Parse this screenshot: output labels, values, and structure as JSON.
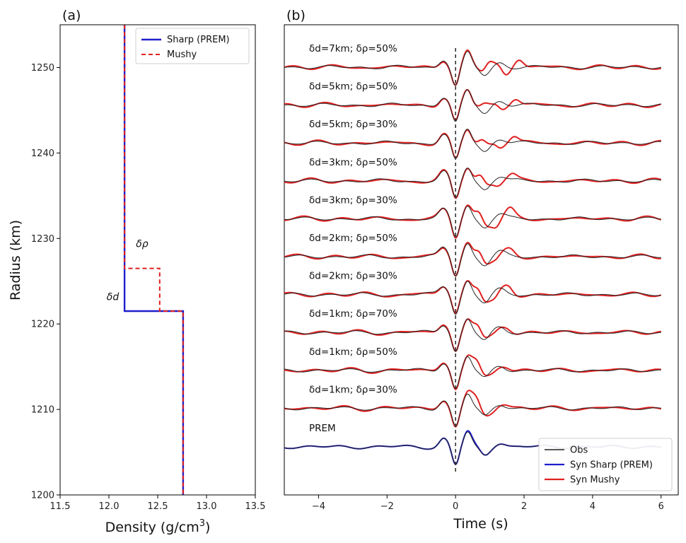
{
  "chart_data": [
    {
      "panel_label": "(a)",
      "type": "line",
      "xlabel": "Density (g/cm",
      "xlabel_sup": "3",
      "xlabel_tail": ")",
      "ylabel": "Radius (km)",
      "xlim": [
        11.5,
        13.5
      ],
      "ylim": [
        1200,
        1255
      ],
      "x_ticks": [
        11.5,
        12.0,
        12.5,
        13.0,
        13.5
      ],
      "x_tick_labels": [
        "11.5",
        "12.0",
        "12.5",
        "13.0",
        "13.5"
      ],
      "y_ticks": [
        1200,
        1210,
        1220,
        1230,
        1240,
        1250
      ],
      "y_tick_labels": [
        "1200",
        "1210",
        "1220",
        "1230",
        "1240",
        "1250"
      ],
      "series": [
        {
          "name": "Sharp (PREM)",
          "color": "#1f1fcc",
          "style": "solid",
          "x": [
            12.16,
            12.16,
            12.76,
            12.76
          ],
          "y": [
            1255,
            1221.5,
            1221.5,
            1200
          ]
        },
        {
          "name": "Mushy",
          "color": "#e02020",
          "style": "dashed",
          "x": [
            12.16,
            12.16,
            12.52,
            12.52,
            12.76,
            12.76
          ],
          "y": [
            1255,
            1226.5,
            1226.5,
            1221.5,
            1221.5,
            1200
          ]
        }
      ],
      "annotations": [
        {
          "text": "δρ",
          "x": 12.34,
          "y": 1229
        },
        {
          "text": "δd",
          "x": 12.04,
          "y": 1222.8
        }
      ],
      "legend_position": "top-right"
    },
    {
      "panel_label": "(b)",
      "type": "line",
      "xlabel": "Time (s)",
      "xlim": [
        -5,
        6.5
      ],
      "x_ticks": [
        -4,
        -2,
        0,
        2,
        4,
        6
      ],
      "x_tick_labels": [
        "−4",
        "−2",
        "0",
        "2",
        "4",
        "6"
      ],
      "y_ticks_shown": false,
      "reference_line": {
        "x": 0,
        "style": "dashed",
        "color": "#333333"
      },
      "traces": [
        {
          "label": "δd=7km; δρ=50%",
          "syn_shift": 0.4,
          "syn_amp": 1.12,
          "delay_wave": 0.55
        },
        {
          "label": "δd=5km; δρ=50%",
          "syn_shift": 0.3,
          "syn_amp": 1.1,
          "delay_wave": 0.45
        },
        {
          "label": "δd=5km; δρ=30%",
          "syn_shift": 0.25,
          "syn_amp": 1.05,
          "delay_wave": 0.45
        },
        {
          "label": "δd=3km; δρ=50%",
          "syn_shift": 0.2,
          "syn_amp": 1.05,
          "delay_wave": 0.4
        },
        {
          "label": "δd=3km; δρ=30%",
          "syn_shift": 0.15,
          "syn_amp": 1.02,
          "delay_wave": 0.55
        },
        {
          "label": "δd=2km; δρ=50%",
          "syn_shift": 0.15,
          "syn_amp": 1.02,
          "delay_wave": 0.35
        },
        {
          "label": "δd=2km; δρ=30%",
          "syn_shift": 0.1,
          "syn_amp": 1.0,
          "delay_wave": 0.45
        },
        {
          "label": "δd=1km; δρ=70%",
          "syn_shift": 0.08,
          "syn_amp": 1.0,
          "delay_wave": 0.25
        },
        {
          "label": "δd=1km; δρ=50%",
          "syn_shift": 0.05,
          "syn_amp": 1.0,
          "delay_wave": 0.2
        },
        {
          "label": "δd=1km; δρ=30%",
          "syn_shift": 0.03,
          "syn_amp": 1.0,
          "delay_wave": 0.15
        },
        {
          "label": "PREM",
          "syn_shift": 0.0,
          "syn_amp": 1.0,
          "delay_wave": 0.05,
          "sharp": true
        }
      ],
      "legend": [
        {
          "name": "Obs",
          "color": "#222222"
        },
        {
          "name": "Syn Sharp (PREM)",
          "color": "#1f1fcc"
        },
        {
          "name": "Syn Mushy",
          "color": "#e02020"
        }
      ],
      "legend_position": "bottom-right"
    }
  ]
}
